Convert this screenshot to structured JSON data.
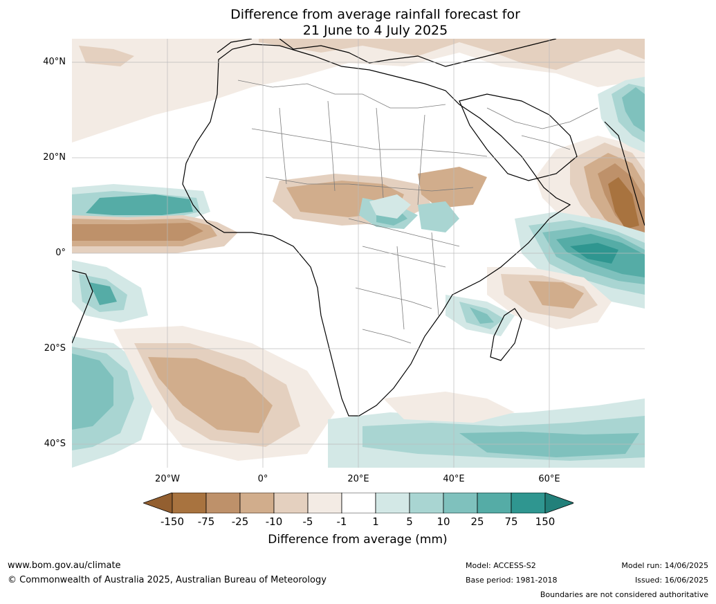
{
  "title_line1": "Difference from average rainfall forecast for",
  "title_line2": "21 June to 4 July 2025",
  "map": {
    "lat_labels": [
      "40°N",
      "20°N",
      "0°",
      "20°S",
      "40°S"
    ],
    "lon_labels": [
      "20°W",
      "0°",
      "20°E",
      "40°E",
      "60°E"
    ],
    "colors": {
      "ocean_base": "#ffffff",
      "brown_1": "#f3ebe4",
      "brown_2": "#e4d0bf",
      "brown_3": "#d1ad8c",
      "brown_4": "#be916a",
      "brown_5": "#a8733f",
      "teal_1": "#d3e8e6",
      "teal_2": "#a9d5d2",
      "teal_3": "#7fc1bd",
      "teal_4": "#55aca6",
      "teal_5": "#2f9690",
      "coastline": "#000000",
      "boundary": "#7a7a7a",
      "gridline": "#bbbbbb"
    }
  },
  "colorbar": {
    "ticks": [
      "-150",
      "-75",
      "-25",
      "-10",
      "-5",
      "-1",
      "1",
      "5",
      "10",
      "25",
      "75",
      "150"
    ],
    "colors": [
      "#a8733f",
      "#be916a",
      "#d1ad8c",
      "#e4d0bf",
      "#f3ebe4",
      "#ffffff",
      "#d3e8e6",
      "#a9d5d2",
      "#7fc1bd",
      "#55aca6",
      "#2f9690"
    ],
    "low_extend_color": "#935f30",
    "high_extend_color": "#22807a",
    "label": "Difference from average (mm)"
  },
  "footer": {
    "website": "www.bom.gov.au/climate",
    "copyright": "© Commonwealth of Australia 2025, Australian Bureau of Meteorology",
    "model": "Model: ACCESS-S2",
    "base_period": "Base period: 1981-2018",
    "model_run": "Model run: 14/06/2025",
    "issued": "Issued: 16/06/2025",
    "disclaimer": "Boundaries are not considered authoritative"
  }
}
